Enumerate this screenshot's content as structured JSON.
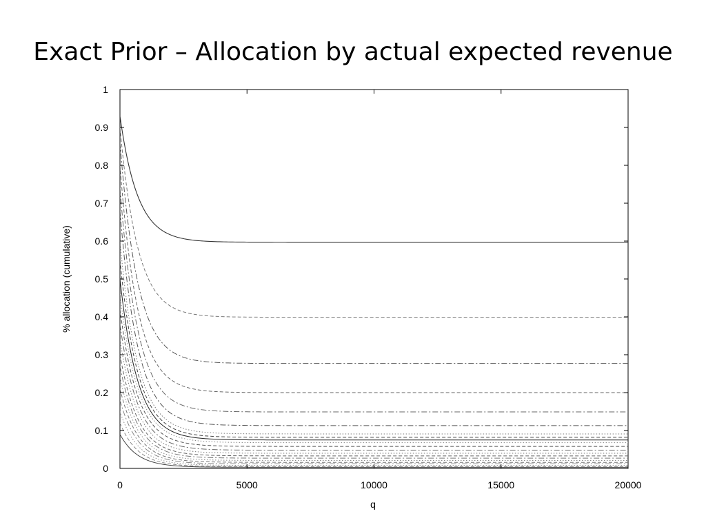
{
  "slide": {
    "title": "Exact Prior – Allocation by actual expected revenue"
  },
  "chart_data": {
    "type": "line",
    "title": "",
    "xlabel": "q",
    "ylabel": "% allocation (cumulative)",
    "xlim": [
      0,
      20000
    ],
    "ylim": [
      0,
      1
    ],
    "x_ticks": [
      0,
      5000,
      10000,
      15000,
      20000
    ],
    "x_tick_labels": [
      "0",
      "5000",
      "10000",
      "15000",
      "20000"
    ],
    "y_ticks": [
      0,
      0.1,
      0.2,
      0.3,
      0.4,
      0.5,
      0.6,
      0.7,
      0.8,
      0.9,
      1
    ],
    "y_tick_labels": [
      "0",
      "0.1",
      "0.2",
      "0.3",
      "0.4",
      "0.5",
      "0.6",
      "0.7",
      "0.8",
      "0.9",
      "1"
    ],
    "grid": false,
    "legend": "none",
    "x": [
      0,
      100,
      250,
      500,
      750,
      1000,
      1500,
      2000,
      3000,
      4000,
      5000,
      7500,
      10000,
      15000,
      20000
    ],
    "series": [
      {
        "start": 0.93,
        "end": 0.597,
        "style": "solid",
        "color": "#333333"
      },
      {
        "start": 0.9,
        "end": 0.399,
        "style": "dash",
        "color": "#777777"
      },
      {
        "start": 0.86,
        "end": 0.277,
        "style": "dashdot",
        "color": "#555555"
      },
      {
        "start": 0.8,
        "end": 0.2,
        "style": "dash",
        "color": "#666666"
      },
      {
        "start": 0.74,
        "end": 0.149,
        "style": "dashdot",
        "color": "#666666"
      },
      {
        "start": 0.68,
        "end": 0.113,
        "style": "dashdot",
        "color": "#555555"
      },
      {
        "start": 0.6,
        "end": 0.091,
        "style": "dot",
        "color": "#777777"
      },
      {
        "start": 0.55,
        "end": 0.082,
        "style": "dash",
        "color": "#444444"
      },
      {
        "start": 0.5,
        "end": 0.075,
        "style": "solid",
        "color": "#222222"
      },
      {
        "start": 0.46,
        "end": 0.068,
        "style": "dot",
        "color": "#888888"
      },
      {
        "start": 0.42,
        "end": 0.058,
        "style": "dash",
        "color": "#555555"
      },
      {
        "start": 0.38,
        "end": 0.048,
        "style": "dashdot",
        "color": "#666666"
      },
      {
        "start": 0.34,
        "end": 0.04,
        "style": "dot",
        "color": "#777777"
      },
      {
        "start": 0.3,
        "end": 0.033,
        "style": "dash",
        "color": "#666666"
      },
      {
        "start": 0.27,
        "end": 0.027,
        "style": "dashdot",
        "color": "#777777"
      },
      {
        "start": 0.24,
        "end": 0.021,
        "style": "dot",
        "color": "#888888"
      },
      {
        "start": 0.21,
        "end": 0.016,
        "style": "dash",
        "color": "#777777"
      },
      {
        "start": 0.18,
        "end": 0.012,
        "style": "dashdot",
        "color": "#888888"
      },
      {
        "start": 0.15,
        "end": 0.008,
        "style": "dot",
        "color": "#888888"
      },
      {
        "start": 0.12,
        "end": 0.005,
        "style": "dash",
        "color": "#888888"
      },
      {
        "start": 0.09,
        "end": 0.003,
        "style": "solid",
        "color": "#444444"
      }
    ]
  }
}
